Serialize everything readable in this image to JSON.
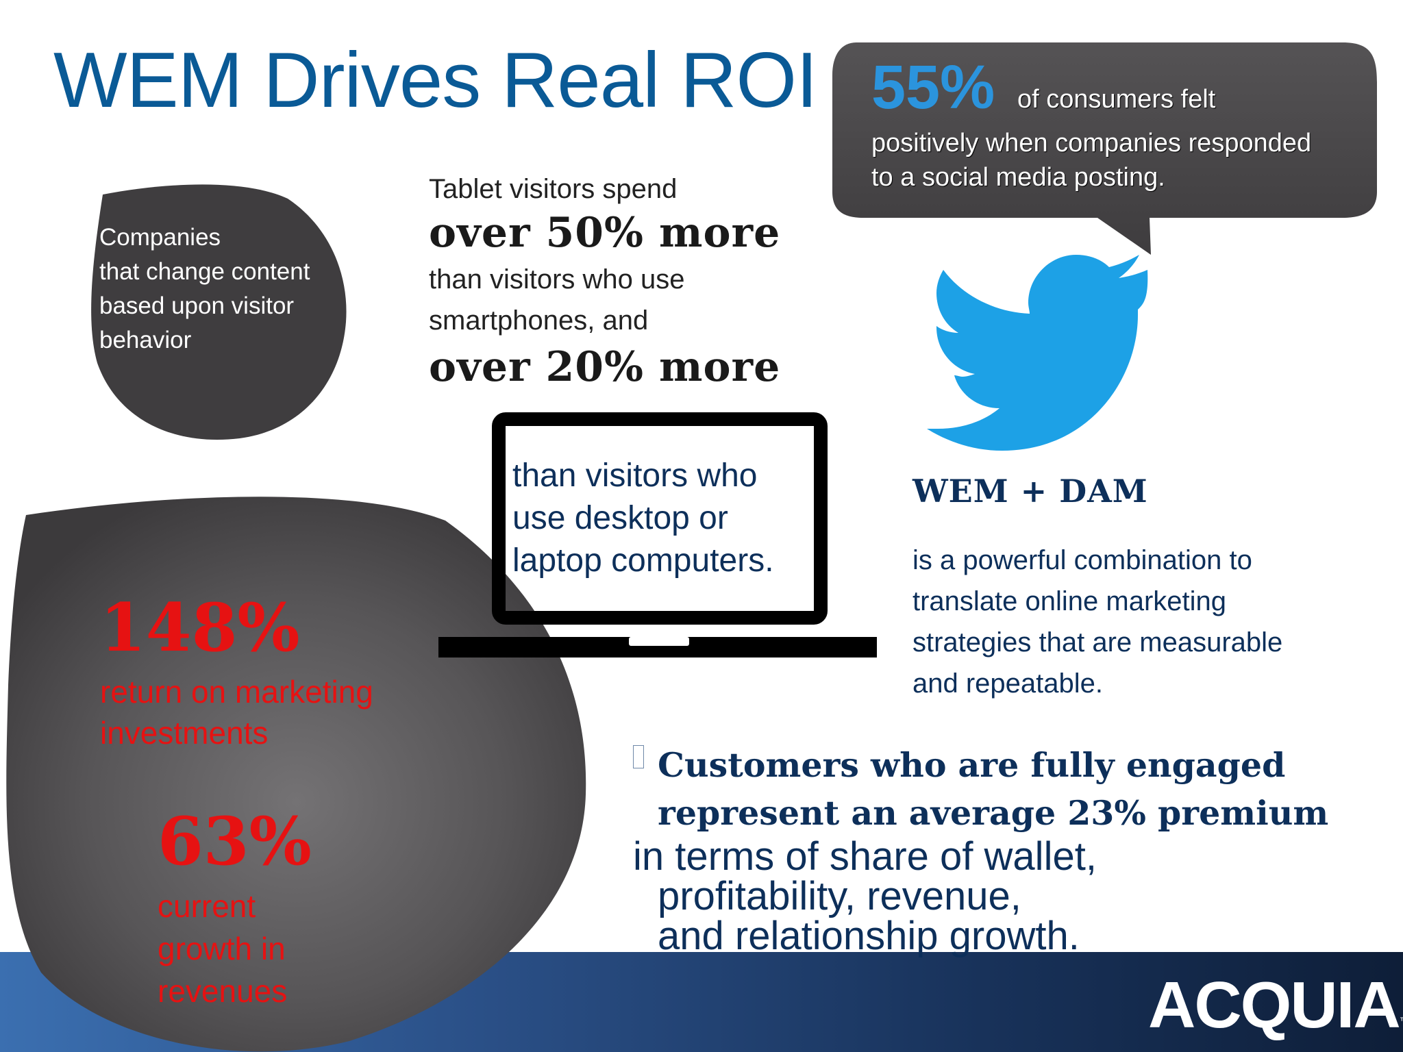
{
  "slide": {
    "title": "WEM Drives Real ROI"
  },
  "small_blob": {
    "text_lines": [
      "Companies",
      "that change content",
      "based upon visitor",
      "behavior"
    ]
  },
  "tablet": {
    "intro": "Tablet visitors spend",
    "big1": "over 50% more",
    "mid_lines": [
      "than visitors who use",
      "smartphones, and"
    ],
    "big2": "over 20% more"
  },
  "laptop": {
    "screen_lines": [
      "than visitors who",
      "use desktop or",
      "laptop computers."
    ]
  },
  "speech_bubble": {
    "stat": "55%",
    "lead": "of consumers felt",
    "body_lines": [
      "positively when companies responded",
      "to a social media posting."
    ]
  },
  "wem_dam": {
    "title": "WEM + DAM",
    "body_lines": [
      "is a powerful combination to",
      "translate online marketing",
      "strategies that are measurable",
      "and repeatable."
    ]
  },
  "big_blob": {
    "stat1": "148%",
    "stat1_label_lines": [
      "return on marketing",
      "investments"
    ],
    "stat2": "63%",
    "stat2_label_lines": [
      "current",
      "growth in",
      "revenues"
    ]
  },
  "customers": {
    "bold_lines": [
      "Customers who are fully engaged",
      "represent an average 23% premium"
    ],
    "normal_lines": [
      "in terms of share of wallet,",
      "profitability, revenue,",
      "and relationship growth."
    ]
  },
  "logo": {
    "text": "ACQUIA",
    "trademark": "™"
  },
  "colors": {
    "title_blue": "#0a5a96",
    "stat_red": "#e61212",
    "navy_text": "#0d2f5a",
    "twitter_blue": "#1da1e6",
    "bubble_stat_blue": "#2b94dd",
    "blob_gray": "#3f3d3f"
  },
  "icons": [
    "twitter-bird-icon",
    "laptop-icon",
    "speech-bubble",
    "bullet-box-icon"
  ]
}
